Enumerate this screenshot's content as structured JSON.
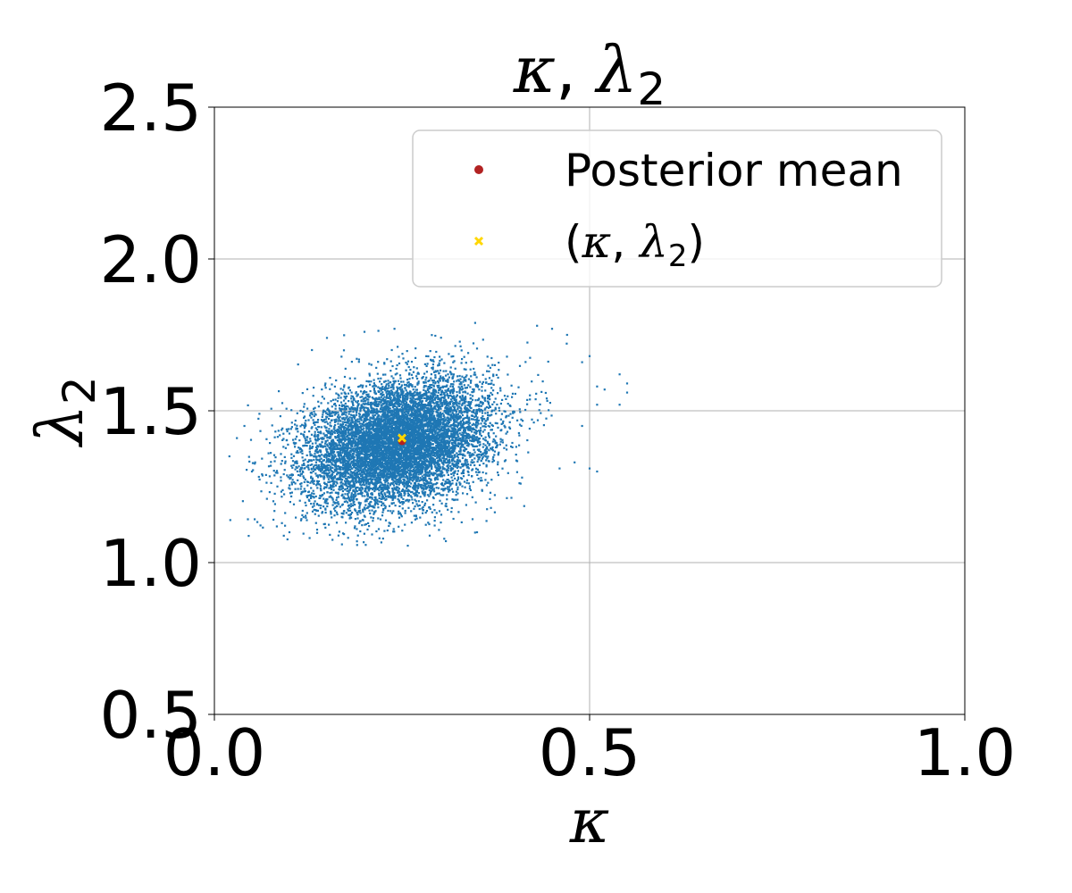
{
  "chart_data": {
    "type": "scatter",
    "title": "κ, λ₂",
    "title_parts": {
      "kappa": "κ",
      "sep": ", ",
      "lambda": "λ",
      "sub": "2"
    },
    "xlabel": "κ",
    "ylabel": {
      "main": "λ",
      "sub": "2"
    },
    "xlim": [
      0.0,
      1.0
    ],
    "ylim": [
      0.5,
      2.5
    ],
    "xticks": [
      "0.0",
      "0.5",
      "1.0"
    ],
    "xtick_values": [
      0.0,
      0.5,
      1.0
    ],
    "yticks": [
      "0.5",
      "1.0",
      "1.5",
      "2.0",
      "2.5"
    ],
    "ytick_values": [
      0.5,
      1.0,
      1.5,
      2.0,
      2.5
    ],
    "grid": true,
    "legend_position": "top-right",
    "series": [
      {
        "kind": "samples",
        "color": "#1f77b4",
        "distribution": {
          "mean_x": 0.245,
          "sd_x": 0.062,
          "mean_y": 1.395,
          "sd_y": 0.105,
          "correlation": 0.28,
          "count": 9000
        }
      },
      {
        "name": "Posterior mean",
        "color": "#b22222",
        "marker": "circle",
        "points": [
          [
            0.25,
            1.4
          ]
        ]
      },
      {
        "name": "(κ, λ₂)",
        "name_parts": {
          "open": "(",
          "kappa": "κ",
          "comma": ", ",
          "lambda": "λ",
          "sub": "2",
          "close": ")"
        },
        "color": "#ffd700",
        "marker": "x",
        "points": [
          [
            0.25,
            1.41
          ]
        ]
      }
    ],
    "outliers": [
      [
        0.45,
        1.77
      ],
      [
        0.43,
        1.78
      ],
      [
        0.47,
        1.75
      ],
      [
        0.49,
        1.66
      ],
      [
        0.5,
        1.68
      ],
      [
        0.51,
        1.58
      ],
      [
        0.52,
        1.57
      ],
      [
        0.54,
        1.62
      ],
      [
        0.55,
        1.59
      ],
      [
        0.55,
        1.56
      ],
      [
        0.54,
        1.52
      ],
      [
        0.51,
        1.52
      ],
      [
        0.49,
        1.45
      ],
      [
        0.5,
        1.31
      ],
      [
        0.51,
        1.3
      ],
      [
        0.48,
        1.33
      ],
      [
        0.46,
        1.31
      ],
      [
        0.04,
        1.45
      ],
      [
        0.03,
        1.41
      ],
      [
        0.06,
        1.49
      ],
      [
        0.05,
        1.3
      ],
      [
        0.07,
        1.21
      ],
      [
        0.08,
        1.17
      ],
      [
        0.09,
        1.13
      ],
      [
        0.1,
        1.1
      ],
      [
        0.17,
        1.06
      ],
      [
        0.19,
        1.07
      ],
      [
        0.22,
        1.08
      ],
      [
        0.35,
        1.1
      ],
      [
        0.13,
        1.7
      ],
      [
        0.15,
        1.74
      ],
      [
        0.2,
        1.76
      ],
      [
        0.24,
        1.77
      ],
      [
        0.02,
        1.35
      ],
      [
        0.41,
        1.28
      ]
    ]
  }
}
